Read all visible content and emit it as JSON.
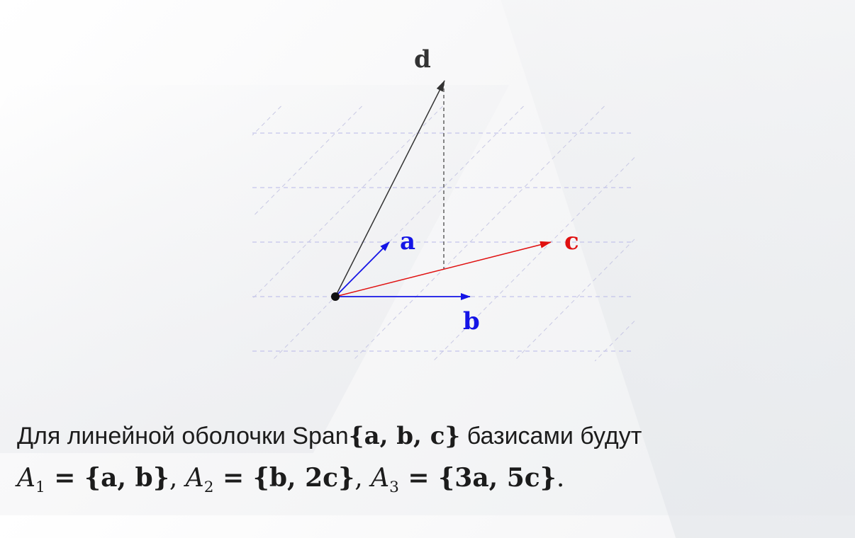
{
  "vectors": {
    "a": {
      "label": "a",
      "color": "#1414e6"
    },
    "b": {
      "label": "b",
      "color": "#1414e6"
    },
    "c": {
      "label": "c",
      "color": "#e01010"
    },
    "d": {
      "label": "d",
      "color": "#333333"
    }
  },
  "caption": {
    "line1_prefix": "Для линейной оболочки Span",
    "line1_set": "{a, b, c}",
    "line1_suffix": " базисами будут",
    "sets": [
      {
        "name": "A",
        "index": "1",
        "value": " = {a, b}",
        "sep": ", "
      },
      {
        "name": "A",
        "index": "2",
        "value": " = {b, 2c}",
        "sep": ", "
      },
      {
        "name": "A",
        "index": "3",
        "value": " = {3a, 5c}",
        "sep": "."
      }
    ]
  }
}
